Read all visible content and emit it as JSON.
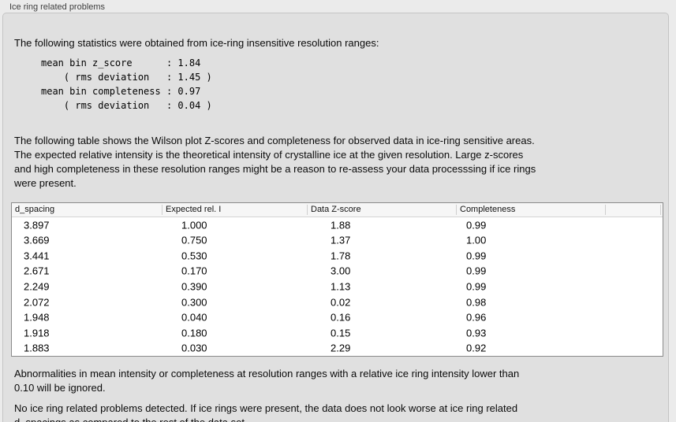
{
  "panel": {
    "title": "Ice ring related problems",
    "intro": "The following statistics were obtained from ice-ring insensitive resolution ranges:",
    "stats_block": "mean bin z_score      : 1.84\n    ( rms deviation   : 1.45 )\nmean bin completeness : 0.97\n    ( rms deviation   : 0.04 )",
    "stats": {
      "mean_bin_z_score": "1.84",
      "z_score_rms_deviation": "1.45",
      "mean_bin_completeness": "0.97",
      "completeness_rms_deviation": "0.04"
    },
    "table_description": "The following table shows the Wilson plot Z-scores and completeness for observed data in ice-ring sensitive areas.\nThe expected relative intensity is the theoretical intensity of crystalline ice at the given resolution. Large z-scores\nand high completeness in these resolution ranges might be a reason to re-assess your data processsing if ice rings\nwere present.",
    "ignore_note": "Abnormalities in mean intensity or completeness at resolution ranges with a relative ice ring intensity lower than\n0.10 will be ignored.",
    "conclusion": "No ice ring related problems detected. If ice rings were present, the data does not look worse at ice ring related\nd_spacings as compared to the rest of the data set."
  },
  "table": {
    "columns": [
      "d_spacing",
      "Expected rel. I",
      "Data Z-score",
      "Completeness"
    ],
    "rows": [
      [
        "3.897",
        "1.000",
        "1.88",
        "0.99"
      ],
      [
        "3.669",
        "0.750",
        "1.37",
        "1.00"
      ],
      [
        "3.441",
        "0.530",
        "1.78",
        "0.99"
      ],
      [
        "2.671",
        "0.170",
        "3.00",
        "0.99"
      ],
      [
        "2.249",
        "0.390",
        "1.13",
        "0.99"
      ],
      [
        "2.072",
        "0.300",
        "0.02",
        "0.98"
      ],
      [
        "1.948",
        "0.040",
        "0.16",
        "0.96"
      ],
      [
        "1.918",
        "0.180",
        "0.15",
        "0.93"
      ],
      [
        "1.883",
        "0.030",
        "2.29",
        "0.92"
      ]
    ]
  },
  "colors": {
    "page_bg": "#ebebeb",
    "panel_bg": "#e0e0e0",
    "panel_border": "#c4c4c4",
    "table_bg": "#ffffff",
    "table_border": "#8a8a8a",
    "table_header_bg": "#f6f6f6",
    "text": "#000000"
  }
}
